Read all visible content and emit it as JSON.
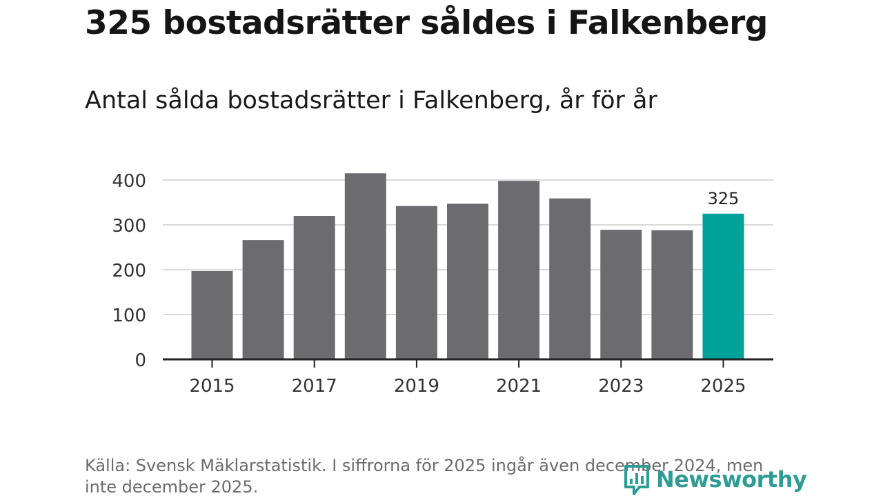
{
  "title": "325 bostadsrätter såldes i Falkenberg",
  "subtitle": "Antal sålda bostadsrätter i Falkenberg, år för år",
  "source": "Källa: Svensk Mäklarstatistik. I siffrorna för 2025 ingår även december 2024, men inte december 2025.",
  "logo": {
    "text": "Newsworthy",
    "icon": "bar-chart-logo-icon"
  },
  "colors": {
    "bar": "#6b6b70",
    "highlight": "#00a39a",
    "grid": "#d9d9d9",
    "axis": "#222222",
    "logo": "#2f9c94"
  },
  "chart_data": {
    "type": "bar",
    "title": "Antal sålda bostadsrätter i Falkenberg, år för år",
    "xlabel": "",
    "ylabel": "",
    "categories": [
      "2015",
      "2016",
      "2017",
      "2018",
      "2019",
      "2020",
      "2021",
      "2022",
      "2023",
      "2024",
      "2025"
    ],
    "values": [
      197,
      266,
      320,
      415,
      342,
      347,
      398,
      359,
      289,
      288,
      325
    ],
    "highlight_category": "2025",
    "data_labels": [
      {
        "category": "2025",
        "text": "325"
      }
    ],
    "yticks": [
      0,
      100,
      200,
      300,
      400
    ],
    "xticks": [
      "2015",
      "2017",
      "2019",
      "2021",
      "2023",
      "2025"
    ],
    "ylim": [
      0,
      420
    ],
    "grid": true
  }
}
